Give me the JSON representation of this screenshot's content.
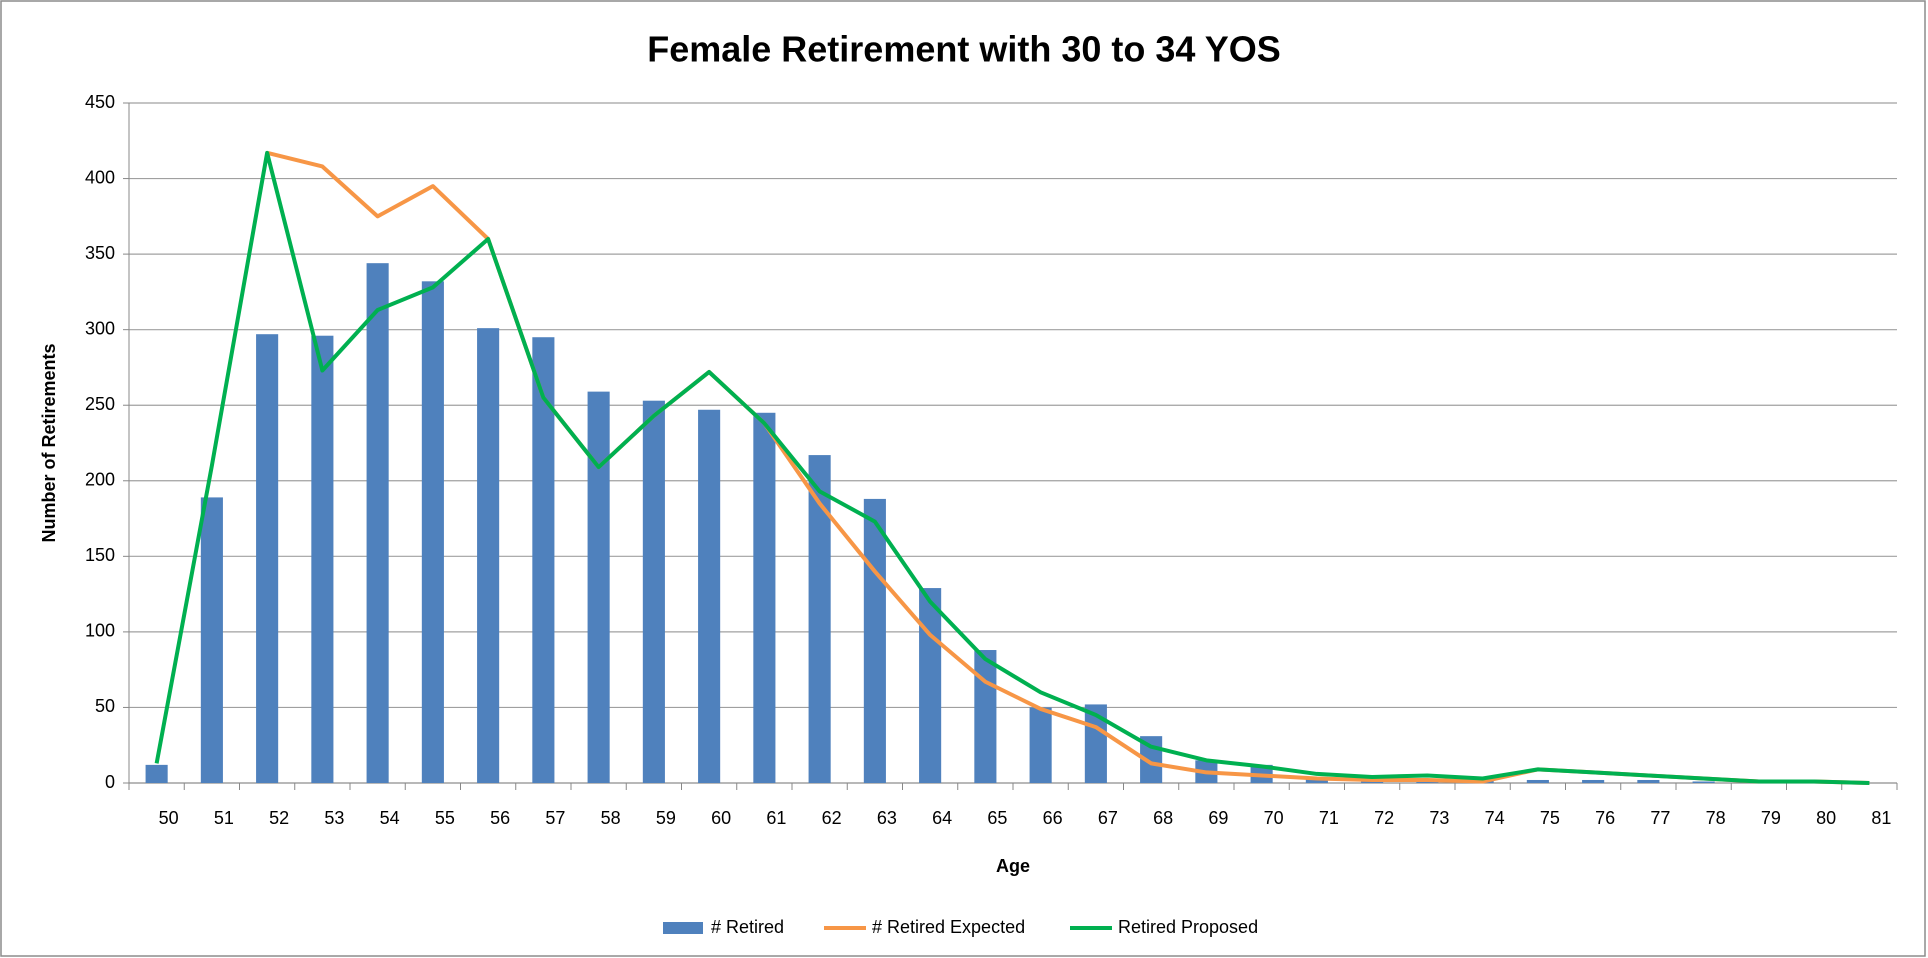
{
  "chart_data": {
    "type": "bar_line",
    "title": "Female Retirement with 30 to 34 YOS",
    "x_label": "Age",
    "y_label": "Number of Retirements",
    "categories": [
      "50",
      "51",
      "52",
      "53",
      "54",
      "55",
      "56",
      "57",
      "58",
      "59",
      "60",
      "61",
      "62",
      "63",
      "64",
      "65",
      "66",
      "67",
      "68",
      "69",
      "70",
      "71",
      "72",
      "73",
      "74",
      "75",
      "76",
      "77",
      "78",
      "79",
      "80",
      "81"
    ],
    "series": [
      {
        "name": "# Retired",
        "type": "bar",
        "color": "#4f81bd",
        "values": [
          12,
          189,
          297,
          296,
          344,
          332,
          301,
          295,
          259,
          253,
          247,
          245,
          217,
          188,
          129,
          88,
          50,
          52,
          31,
          15,
          12,
          4,
          2,
          2,
          2,
          2,
          2,
          2,
          1,
          1,
          1,
          0
        ]
      },
      {
        "name": "# Retired Expected",
        "type": "line",
        "color": "#f79646",
        "values": [
          null,
          null,
          417,
          408,
          375,
          395,
          360,
          255,
          209,
          243,
          272,
          238,
          185,
          140,
          98,
          67,
          49,
          37,
          13,
          7,
          5,
          3,
          2,
          2,
          1,
          9,
          7,
          5,
          3,
          1,
          1,
          0
        ]
      },
      {
        "name": "Retired Proposed",
        "type": "line",
        "color": "#00b050",
        "values": [
          13,
          210,
          417,
          273,
          313,
          328,
          360,
          255,
          209,
          243,
          272,
          238,
          193,
          173,
          120,
          82,
          60,
          45,
          24,
          15,
          11,
          6,
          4,
          5,
          3,
          9,
          7,
          5,
          3,
          1,
          1,
          0
        ]
      }
    ],
    "ylim": [
      0,
      450
    ],
    "yticks": [
      0,
      50,
      100,
      150,
      200,
      250,
      300,
      350,
      400,
      450
    ],
    "grid": true
  }
}
